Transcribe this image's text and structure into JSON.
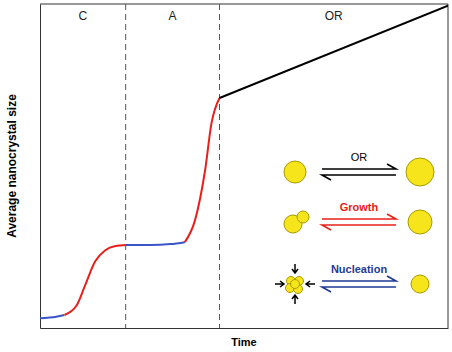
{
  "chart_data": {
    "type": "line",
    "x_label": "Time",
    "y_label": "Average nanocrystal size",
    "x": [
      0,
      0.4,
      0.6,
      0.9,
      1.1,
      1.35,
      1.6,
      1.85,
      2.1,
      2.7,
      3.2,
      3.55,
      3.8,
      4.05,
      4.2,
      4.4,
      10
    ],
    "series": [
      {
        "name": "Nucleation",
        "color": "#3a55c8",
        "values": [
          0.3,
          0.35,
          0.4,
          null,
          null,
          null,
          null,
          null,
          null,
          null,
          null,
          null,
          null,
          null,
          null,
          null,
          null
        ]
      },
      {
        "name": "Growth",
        "color": "#e8201a",
        "values": [
          null,
          null,
          0.4,
          0.7,
          1.3,
          2.05,
          2.4,
          2.53,
          2.56,
          null,
          null,
          null,
          null,
          null,
          null,
          null,
          null
        ]
      },
      {
        "name": "Nucleation",
        "color": "#3a55c8",
        "values": [
          null,
          null,
          null,
          null,
          null,
          null,
          null,
          null,
          2.56,
          2.56,
          2.59,
          2.65,
          null,
          null,
          null,
          null,
          null
        ]
      },
      {
        "name": "Growth",
        "color": "#e8201a",
        "values": [
          null,
          null,
          null,
          null,
          null,
          null,
          null,
          null,
          null,
          null,
          null,
          2.65,
          3.33,
          4.9,
          6.3,
          7.1,
          null
        ]
      },
      {
        "name": "OR",
        "color": "#000000",
        "values": [
          null,
          null,
          null,
          null,
          null,
          null,
          null,
          null,
          null,
          null,
          null,
          null,
          null,
          null,
          null,
          7.1,
          9.95
        ]
      }
    ],
    "xlim": [
      0,
      10
    ],
    "ylim": [
      0,
      10
    ],
    "xticks": [],
    "yticks": [],
    "tick_labels": false,
    "grid": false,
    "stage_labels": [
      "C",
      "A",
      "OR"
    ],
    "stage_boundaries": [
      2.1,
      4.4
    ],
    "mechanisms": [
      {
        "label": "OR",
        "color": "#000000"
      },
      {
        "label": "Growth",
        "color": "#e8201a"
      },
      {
        "label": "Nucleation",
        "color": "#1f3a93"
      }
    ]
  }
}
